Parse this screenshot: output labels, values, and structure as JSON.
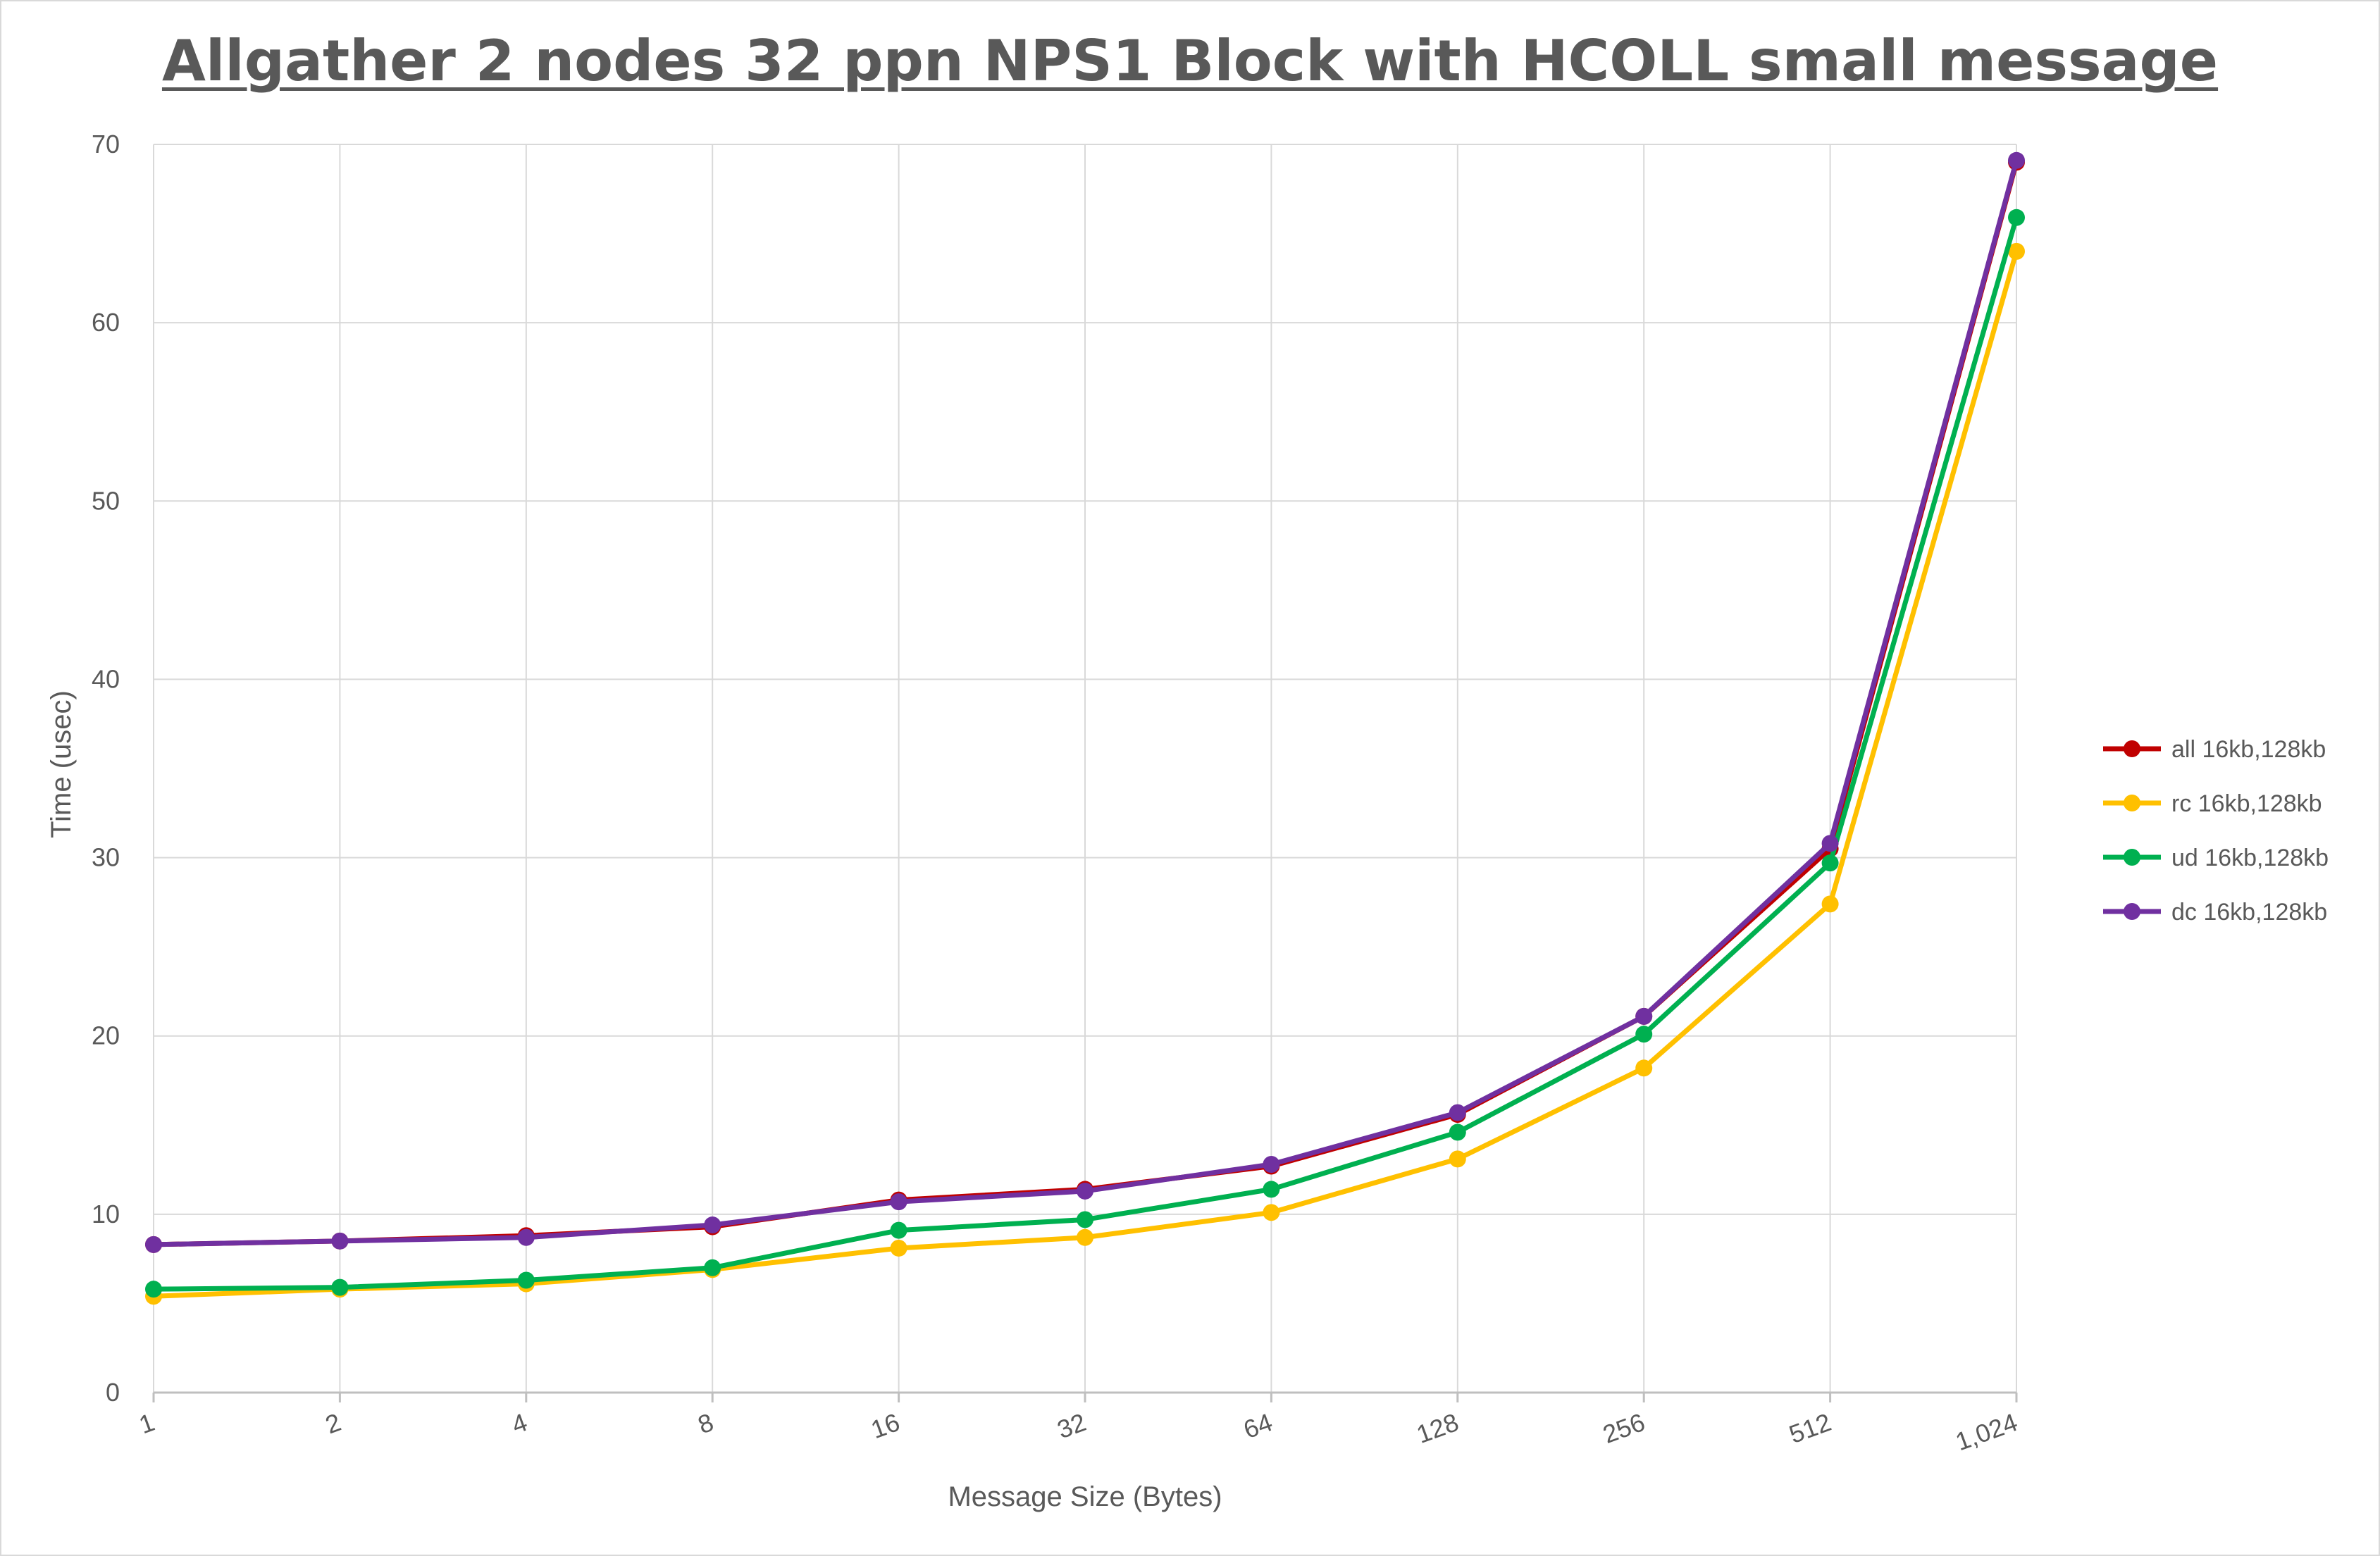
{
  "chart_data": {
    "type": "line",
    "title": "Allgather 2 nodes 32 ppn NPS1 Block with HCOLL small message",
    "xlabel": "Message Size (Bytes)",
    "ylabel": "Time (usec)",
    "categories": [
      "1",
      "2",
      "4",
      "8",
      "16",
      "32",
      "64",
      "128",
      "256",
      "512",
      "1,024"
    ],
    "ylim": [
      0,
      70
    ],
    "yticks": [
      0,
      10,
      20,
      30,
      40,
      50,
      60,
      70
    ],
    "grid": true,
    "legend_position": "right",
    "series": [
      {
        "name": "all 16kb,128kb",
        "color": "#c00000",
        "values": [
          8.3,
          8.5,
          8.8,
          9.3,
          10.8,
          11.4,
          12.7,
          15.6,
          21.1,
          30.5,
          69.0
        ]
      },
      {
        "name": "rc 16kb,128kb",
        "color": "#ffc000",
        "values": [
          5.4,
          5.8,
          6.1,
          6.9,
          8.1,
          8.7,
          10.1,
          13.1,
          18.2,
          27.4,
          64.0
        ]
      },
      {
        "name": "ud 16kb,128kb",
        "color": "#00b050",
        "values": [
          5.8,
          5.9,
          6.3,
          7.0,
          9.1,
          9.7,
          11.4,
          14.6,
          20.1,
          29.7,
          65.9
        ]
      },
      {
        "name": "dc 16kb,128kb",
        "color": "#7030a0",
        "values": [
          8.3,
          8.5,
          8.7,
          9.4,
          10.7,
          11.3,
          12.8,
          15.7,
          21.1,
          30.8,
          69.1
        ]
      }
    ]
  }
}
